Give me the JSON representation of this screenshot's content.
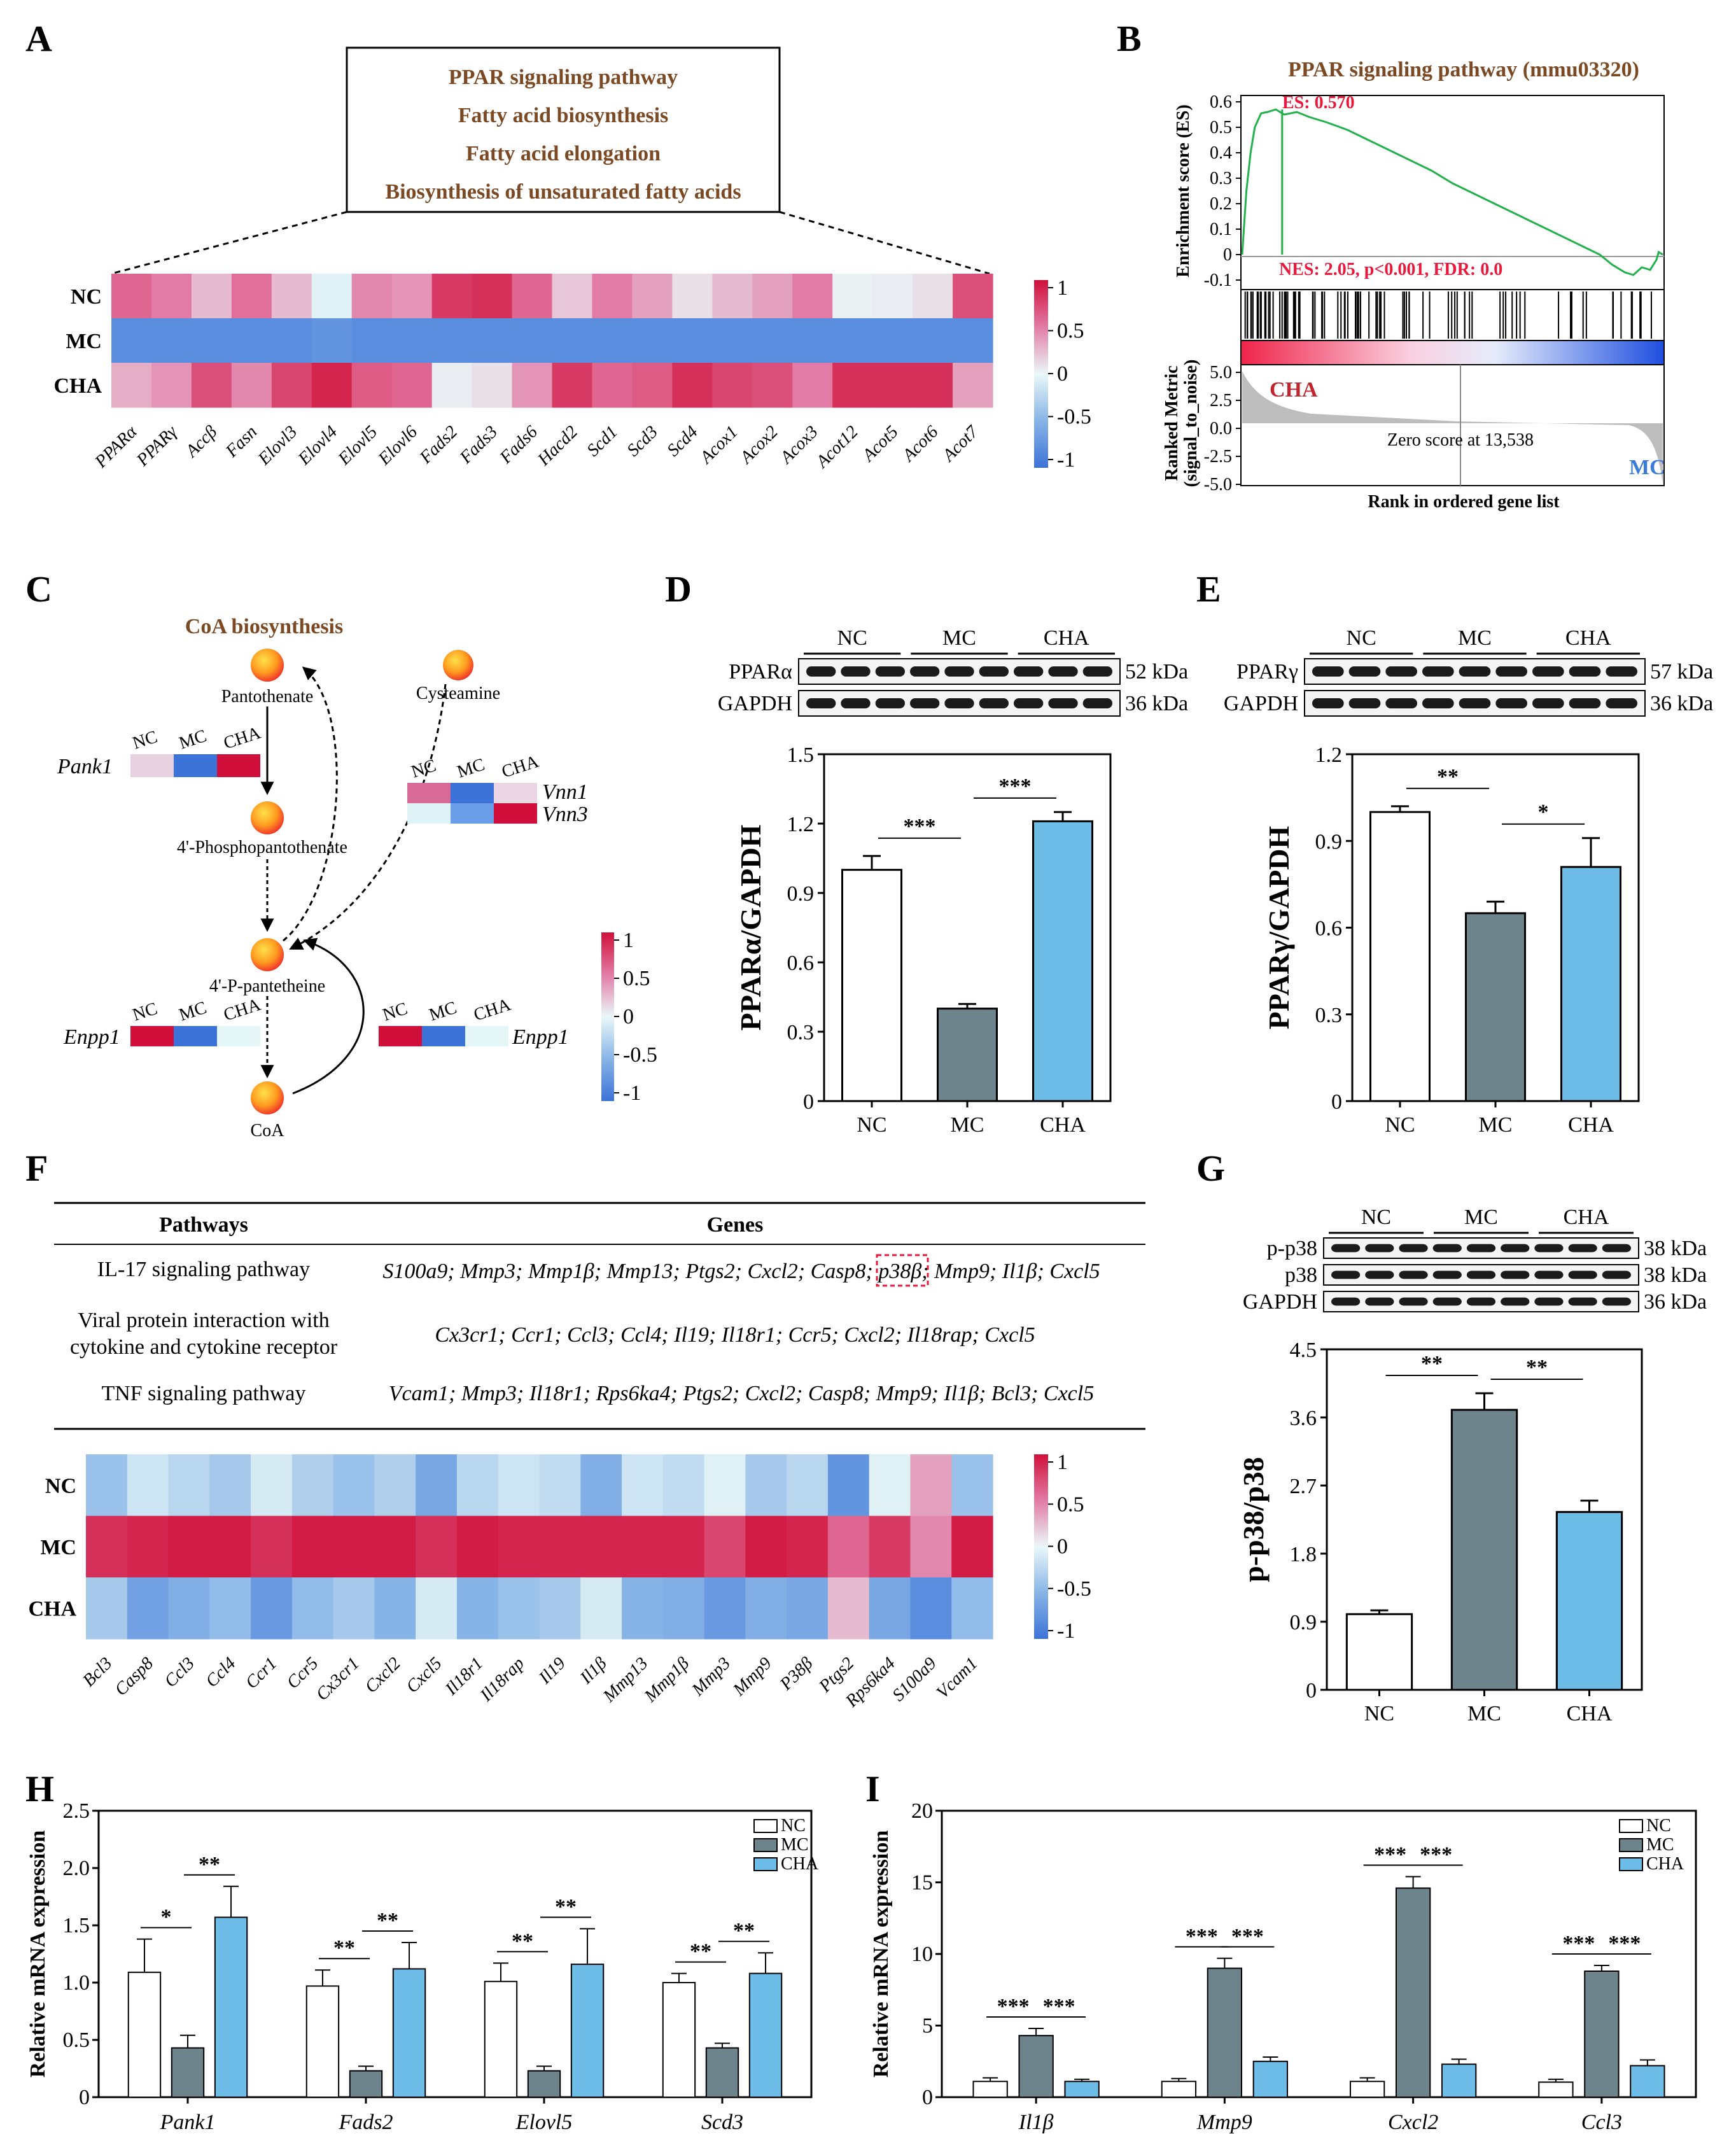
{
  "colors": {
    "nc": "#ffffff",
    "mc": "#6e848c",
    "cha": "#6ebde8",
    "red": "#d0103a",
    "blue": "#3c73d9",
    "brown": "#7b4a24",
    "gsea_line": "#22b14c",
    "nes_red": "#e8193c",
    "cha_red": "#c0262c",
    "mc_blue": "#3a7bd5"
  },
  "panels": {
    "A": "A",
    "B": "B",
    "C": "C",
    "D": "D",
    "E": "E",
    "F": "F",
    "G": "G",
    "H": "H",
    "I": "I"
  },
  "chart_data": [
    {
      "id": "A",
      "type": "heatmap",
      "pathways": [
        "PPAR signaling pathway",
        "Fatty acid biosynthesis",
        "Fatty acid elongation",
        "Biosynthesis of unsaturated fatty acids"
      ],
      "rows": [
        "NC",
        "MC",
        "CHA"
      ],
      "columns": [
        "PPARα",
        "PPARγ",
        "Accβ",
        "Fasn",
        "Elovl3",
        "Elovl4",
        "Elovl5",
        "Elovl6",
        "Fads2",
        "Fads3",
        "Fads6",
        "Hacd2",
        "Scd1",
        "Scd3",
        "Scd4",
        "Acox1",
        "Acox2",
        "Acox3",
        "Acot12",
        "Acot5",
        "Acot6",
        "Acot7"
      ],
      "values": [
        [
          0.6,
          0.5,
          0.25,
          0.55,
          0.25,
          -0.05,
          0.45,
          0.4,
          0.8,
          0.85,
          0.6,
          0.2,
          0.5,
          0.35,
          0.1,
          0.25,
          0.35,
          0.5,
          0.03,
          0.05,
          0.1,
          0.7
        ],
        [
          -0.8,
          -0.8,
          -0.8,
          -0.8,
          -0.8,
          -0.75,
          -0.8,
          -0.8,
          -0.8,
          -0.8,
          -0.8,
          -0.8,
          -0.8,
          -0.8,
          -0.8,
          -0.8,
          -0.8,
          -0.8,
          -0.8,
          -0.8,
          -0.8,
          -0.8
        ],
        [
          0.3,
          0.4,
          0.7,
          0.45,
          0.75,
          0.9,
          0.65,
          0.6,
          0.05,
          0.1,
          0.4,
          0.8,
          0.6,
          0.65,
          0.85,
          0.75,
          0.7,
          0.5,
          0.85,
          0.85,
          0.85,
          0.35
        ]
      ],
      "colorbar": {
        "ticks": [
          "1",
          "0.5",
          "0",
          "-0.5",
          "-1"
        ]
      }
    },
    {
      "id": "B",
      "type": "line",
      "title": "PPAR signaling pathway (mmu03320)",
      "ylabel": "Enrichment score (ES)",
      "ylabel2": "Ranked Metric",
      "ylabel3": "(signal_to_noise)",
      "xlabel": "Rank in ordered gene list",
      "es_label": "ES: 0.570",
      "nes_label": "NES: 2.05, p<0.001, FDR: 0.0",
      "yticks": [
        "0.6",
        "0.5",
        "0.4",
        "0.3",
        "0.2",
        "0.1",
        "0",
        "-0.1"
      ],
      "yticks2": [
        "5.0",
        "2.5",
        "0.0",
        "-2.5",
        "-5.0"
      ],
      "cha_label": "CHA",
      "mc_label": "MC",
      "zero_label": "Zero score at 13,538"
    },
    {
      "id": "C",
      "type": "diagram",
      "title": "CoA biosynthesis",
      "nodes": [
        "Pantothenate",
        "4'-Phosphopantothenate",
        "4'-P-pantetheine",
        "CoA",
        "Cysteamine"
      ],
      "genes": {
        "pank1": "Pank1",
        "enpp1a": "Enpp1",
        "enpp1b": "Enpp1",
        "vnn1": "Vnn1",
        "vnn3": "Vnn3"
      },
      "groups": [
        "NC",
        "MC",
        "CHA"
      ],
      "colorbar": {
        "ticks": [
          "1",
          "0.5",
          "0",
          "-0.5",
          "-1"
        ]
      }
    },
    {
      "id": "D",
      "type": "bar",
      "ylabel": "PPARα/GAPDH",
      "categories": [
        "NC",
        "MC",
        "CHA"
      ],
      "values": [
        1.0,
        0.4,
        1.21
      ],
      "errors": [
        0.06,
        0.02,
        0.04
      ],
      "ylim": [
        0,
        1.5
      ],
      "yticks": [
        "0",
        "0.3",
        "0.6",
        "0.9",
        "1.2",
        "1.5"
      ],
      "sig": [
        "***",
        "***"
      ],
      "blot": {
        "groups": [
          "NC",
          "MC",
          "CHA"
        ],
        "rows": [
          "PPARα",
          "GAPDH"
        ],
        "sizes": [
          "52 kDa",
          "36 kDa"
        ]
      }
    },
    {
      "id": "E",
      "type": "bar",
      "ylabel": "PPARγ/GAPDH",
      "categories": [
        "NC",
        "MC",
        "CHA"
      ],
      "values": [
        1.0,
        0.65,
        0.81
      ],
      "errors": [
        0.02,
        0.04,
        0.1
      ],
      "ylim": [
        0,
        1.2
      ],
      "yticks": [
        "0",
        "0.3",
        "0.6",
        "0.9",
        "1.2"
      ],
      "sig": [
        "**",
        "*"
      ],
      "blot": {
        "groups": [
          "NC",
          "MC",
          "CHA"
        ],
        "rows": [
          "PPARγ",
          "GAPDH"
        ],
        "sizes": [
          "57 kDa",
          "36 kDa"
        ]
      }
    },
    {
      "id": "F",
      "type": "heatmap",
      "table": {
        "headers": [
          "Pathways",
          "Genes"
        ],
        "rows": [
          {
            "pathway": "IL-17 signaling pathway",
            "pathway2": "",
            "genes": "S100a9; Mmp3; Mmp1β; Mmp13; Ptgs2; Cxcl2; Casp8; p38β; Mmp9; Il1β; Cxcl5"
          },
          {
            "pathway": "Viral protein interaction with",
            "pathway2": "cytokine and cytokine receptor",
            "genes": "Cx3cr1; Ccr1; Ccl3; Ccl4; Il19; Il18r1; Ccr5; Cxcl2; Il18rap; Cxcl5"
          },
          {
            "pathway": "TNF signaling pathway",
            "pathway2": "",
            "genes": "Vcam1; Mmp3; Il18r1; Rps6ka4; Ptgs2; Cxcl2; Casp8; Mmp9; Il1β; Bcl3; Cxcl5"
          }
        ]
      },
      "rows": [
        "NC",
        "MC",
        "CHA"
      ],
      "columns": [
        "Bcl3",
        "Casp8",
        "Ccl3",
        "Ccl4",
        "Ccr1",
        "Ccr5",
        "Cx3cr1",
        "Cxcl2",
        "Cxcl5",
        "Il18r1",
        "Il18rap",
        "Il19",
        "Il1β",
        "Mmp13",
        "Mmp1β",
        "Mmp3",
        "Mmp9",
        "P38β",
        "Ptgs2",
        "Rps6ka4",
        "S100a9",
        "Vcam1"
      ],
      "values": [
        [
          -0.4,
          -0.15,
          -0.25,
          -0.35,
          -0.1,
          -0.3,
          -0.4,
          -0.3,
          -0.6,
          -0.25,
          -0.15,
          -0.2,
          -0.55,
          -0.15,
          -0.2,
          -0.05,
          -0.35,
          -0.25,
          -0.75,
          -0.05,
          0.35,
          -0.4
        ],
        [
          0.85,
          0.9,
          0.95,
          0.95,
          0.85,
          0.95,
          0.95,
          0.95,
          0.85,
          0.95,
          0.9,
          0.9,
          0.9,
          0.9,
          0.9,
          0.75,
          0.95,
          0.9,
          0.6,
          0.8,
          0.45,
          0.95
        ],
        [
          -0.35,
          -0.65,
          -0.55,
          -0.45,
          -0.7,
          -0.45,
          -0.35,
          -0.5,
          -0.1,
          -0.5,
          -0.4,
          -0.35,
          -0.1,
          -0.5,
          -0.55,
          -0.7,
          -0.55,
          -0.6,
          0.25,
          -0.6,
          -0.8,
          -0.45
        ]
      ],
      "colorbar": {
        "ticks": [
          "1",
          "0.5",
          "0",
          "-0.5",
          "-1"
        ]
      }
    },
    {
      "id": "G",
      "type": "bar",
      "ylabel": "p-p38/p38",
      "categories": [
        "NC",
        "MC",
        "CHA"
      ],
      "values": [
        1.0,
        3.7,
        2.35
      ],
      "errors": [
        0.05,
        0.22,
        0.15
      ],
      "ylim": [
        0,
        4.5
      ],
      "yticks": [
        "0",
        "0.9",
        "1.8",
        "2.7",
        "3.6",
        "4.5"
      ],
      "sig": [
        "**",
        "**"
      ],
      "blot": {
        "groups": [
          "NC",
          "MC",
          "CHA"
        ],
        "rows": [
          "p-p38",
          "p38",
          "GAPDH"
        ],
        "sizes": [
          "38 kDa",
          "38 kDa",
          "36 kDa"
        ]
      }
    },
    {
      "id": "H",
      "type": "bar",
      "ylabel": "Relative mRNA expression",
      "categories": [
        "Pank1",
        "Fads2",
        "Elovl5",
        "Scd3"
      ],
      "series": [
        {
          "name": "NC",
          "values": [
            1.09,
            0.97,
            1.01,
            1.0
          ],
          "errors": [
            0.29,
            0.14,
            0.16,
            0.08
          ]
        },
        {
          "name": "MC",
          "values": [
            0.43,
            0.23,
            0.23,
            0.43
          ],
          "errors": [
            0.11,
            0.04,
            0.04,
            0.04
          ]
        },
        {
          "name": "CHA",
          "values": [
            1.57,
            1.12,
            1.16,
            1.08
          ],
          "errors": [
            0.27,
            0.23,
            0.31,
            0.18
          ]
        }
      ],
      "ylim": [
        0,
        2.5
      ],
      "yticks": [
        "0",
        "0.5",
        "1.0",
        "1.5",
        "2.0",
        "2.5"
      ],
      "sig": [
        [
          "*",
          "**"
        ],
        [
          "**",
          "**"
        ],
        [
          "**",
          "**"
        ],
        [
          "**",
          "**"
        ]
      ]
    },
    {
      "id": "I",
      "type": "bar",
      "ylabel": "Relative mRNA expression",
      "categories": [
        "Il1β",
        "Mmp9",
        "Cxcl2",
        "Ccl3"
      ],
      "series": [
        {
          "name": "NC",
          "values": [
            1.1,
            1.1,
            1.1,
            1.05
          ],
          "errors": [
            0.25,
            0.2,
            0.25,
            0.2
          ]
        },
        {
          "name": "MC",
          "values": [
            4.3,
            9.0,
            14.6,
            8.8
          ],
          "errors": [
            0.5,
            0.7,
            0.8,
            0.4
          ]
        },
        {
          "name": "CHA",
          "values": [
            1.1,
            2.5,
            2.3,
            2.2
          ],
          "errors": [
            0.15,
            0.3,
            0.35,
            0.4
          ]
        }
      ],
      "ylim": [
        0,
        20
      ],
      "yticks": [
        "0",
        "5",
        "10",
        "15",
        "20"
      ],
      "sig": [
        [
          "***",
          "***"
        ],
        [
          "***",
          "***"
        ],
        [
          "***",
          "***"
        ],
        [
          "***",
          "***"
        ]
      ]
    }
  ]
}
